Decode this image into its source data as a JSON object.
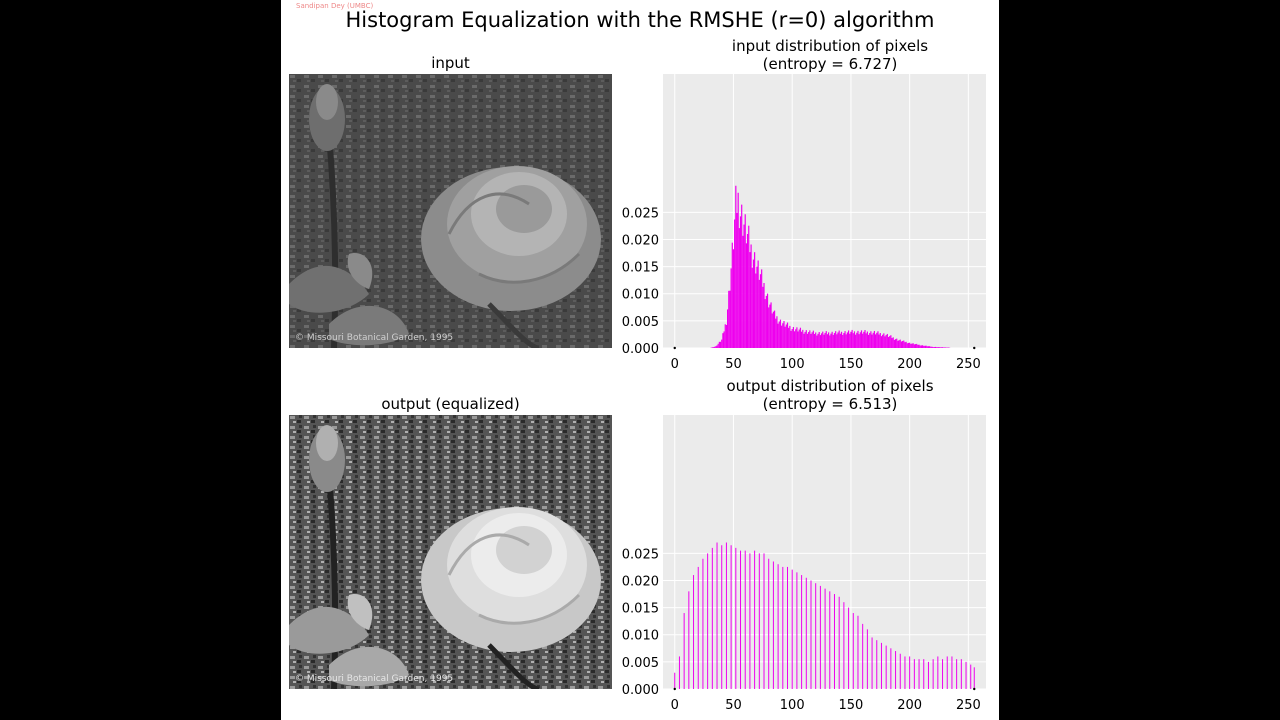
{
  "watermark": "Sandipan Dey (UMBC)",
  "title": "Histogram Equalization with the RMSHE (r=0) algorithm",
  "images": {
    "input": {
      "title": "input",
      "caption": "© Missouri Botanical Garden, 1995"
    },
    "output": {
      "title": "output (equalized)",
      "caption": "© Missouri Botanical Garden, 1995"
    }
  },
  "colors": {
    "hist": "#ee00ee",
    "plot_bg": "#ebebeb",
    "grid": "#ffffff",
    "page": "#ffffff"
  },
  "chart_data": [
    {
      "type": "bar",
      "title_lines": [
        "input distribution of pixels",
        "(entropy = 6.727)"
      ],
      "xlim": [
        -10,
        265
      ],
      "ylim": [
        0,
        0.0505
      ],
      "xticks": [
        0,
        50,
        100,
        150,
        200,
        250
      ],
      "yticks": [
        0.0,
        0.005,
        0.01,
        0.015,
        0.02,
        0.025
      ],
      "ytick_labels": [
        "0.000",
        "0.005",
        "0.010",
        "0.015",
        "0.020",
        "0.025"
      ],
      "grid": true,
      "curve": [
        [
          0,
          0
        ],
        [
          30,
          0
        ],
        [
          35,
          0.0003
        ],
        [
          40,
          0.0015
        ],
        [
          44,
          0.005
        ],
        [
          47,
          0.012
        ],
        [
          50,
          0.02
        ],
        [
          52,
          0.026
        ],
        [
          54,
          0.027
        ],
        [
          56,
          0.025
        ],
        [
          60,
          0.022
        ],
        [
          65,
          0.018
        ],
        [
          70,
          0.015
        ],
        [
          75,
          0.012
        ],
        [
          80,
          0.0085
        ],
        [
          85,
          0.006
        ],
        [
          90,
          0.0048
        ],
        [
          100,
          0.0036
        ],
        [
          110,
          0.0031
        ],
        [
          120,
          0.0027
        ],
        [
          130,
          0.0027
        ],
        [
          140,
          0.0028
        ],
        [
          150,
          0.0029
        ],
        [
          160,
          0.0029
        ],
        [
          170,
          0.0028
        ],
        [
          180,
          0.0024
        ],
        [
          190,
          0.0015
        ],
        [
          200,
          0.0009
        ],
        [
          210,
          0.0005
        ],
        [
          220,
          0.0002
        ],
        [
          230,
          0.0001
        ],
        [
          240,
          0.0
        ],
        [
          255,
          0
        ]
      ],
      "series": [
        {
          "name": "",
          "x": [],
          "values": []
        }
      ]
    },
    {
      "type": "bar",
      "title_lines": [
        "output distribution of pixels",
        "(entropy = 6.513)"
      ],
      "xlim": [
        -10,
        265
      ],
      "ylim": [
        0,
        0.0505
      ],
      "xticks": [
        0,
        50,
        100,
        150,
        200,
        250
      ],
      "yticks": [
        0.0,
        0.005,
        0.01,
        0.015,
        0.02,
        0.025
      ],
      "ytick_labels": [
        "0.000",
        "0.005",
        "0.010",
        "0.015",
        "0.020",
        "0.025"
      ],
      "grid": true,
      "series": [
        {
          "name": "",
          "x": [
            0,
            4,
            8,
            12,
            16,
            20,
            24,
            28,
            32,
            36,
            40,
            44,
            48,
            52,
            56,
            60,
            64,
            68,
            72,
            76,
            80,
            84,
            88,
            92,
            96,
            100,
            104,
            108,
            112,
            116,
            120,
            124,
            128,
            132,
            136,
            140,
            144,
            148,
            152,
            156,
            160,
            164,
            168,
            172,
            176,
            180,
            184,
            188,
            192,
            196,
            200,
            204,
            208,
            212,
            216,
            220,
            224,
            228,
            232,
            236,
            240,
            244,
            248,
            252,
            255
          ],
          "values": [
            0.003,
            0.006,
            0.014,
            0.018,
            0.021,
            0.0225,
            0.024,
            0.025,
            0.026,
            0.027,
            0.0265,
            0.027,
            0.0265,
            0.026,
            0.0255,
            0.0255,
            0.025,
            0.0255,
            0.025,
            0.025,
            0.024,
            0.0235,
            0.023,
            0.0225,
            0.0225,
            0.022,
            0.0215,
            0.021,
            0.0205,
            0.02,
            0.0195,
            0.019,
            0.0185,
            0.018,
            0.0175,
            0.017,
            0.016,
            0.015,
            0.014,
            0.0135,
            0.012,
            0.011,
            0.0095,
            0.009,
            0.0085,
            0.008,
            0.0075,
            0.007,
            0.0065,
            0.006,
            0.006,
            0.0055,
            0.0055,
            0.0055,
            0.005,
            0.0055,
            0.006,
            0.0055,
            0.006,
            0.006,
            0.0055,
            0.0055,
            0.005,
            0.0045,
            0.004
          ]
        }
      ]
    }
  ]
}
